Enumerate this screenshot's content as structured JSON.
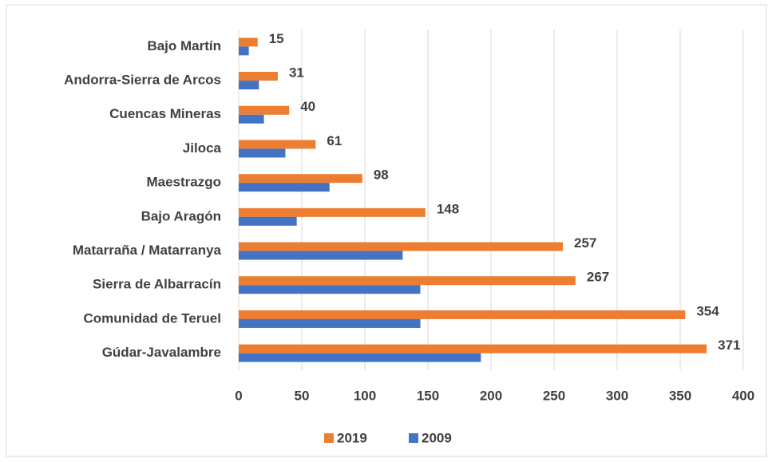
{
  "chart_data": {
    "type": "bar",
    "orientation": "horizontal",
    "categories": [
      "Bajo Martín",
      "Andorra-Sierra de Arcos",
      "Cuencas Mineras",
      "Jiloca",
      "Maestrazgo",
      "Bajo Aragón",
      "Matarraña / Matarranya",
      "Sierra de Albarracín",
      "Comunidad de Teruel",
      "Gúdar-Javalambre"
    ],
    "series": [
      {
        "name": "2019",
        "color": "#ed7d31",
        "values": [
          15,
          31,
          40,
          61,
          98,
          148,
          257,
          267,
          354,
          371
        ],
        "data_labels": true
      },
      {
        "name": "2009",
        "color": "#4472c4",
        "values": [
          8,
          16,
          20,
          37,
          72,
          46,
          130,
          144,
          144,
          192
        ],
        "data_labels": false
      }
    ],
    "xlim": [
      0,
      400
    ],
    "xticks": [
      0,
      50,
      100,
      150,
      200,
      250,
      300,
      350,
      400
    ],
    "grid": true,
    "legend": "bottom"
  }
}
